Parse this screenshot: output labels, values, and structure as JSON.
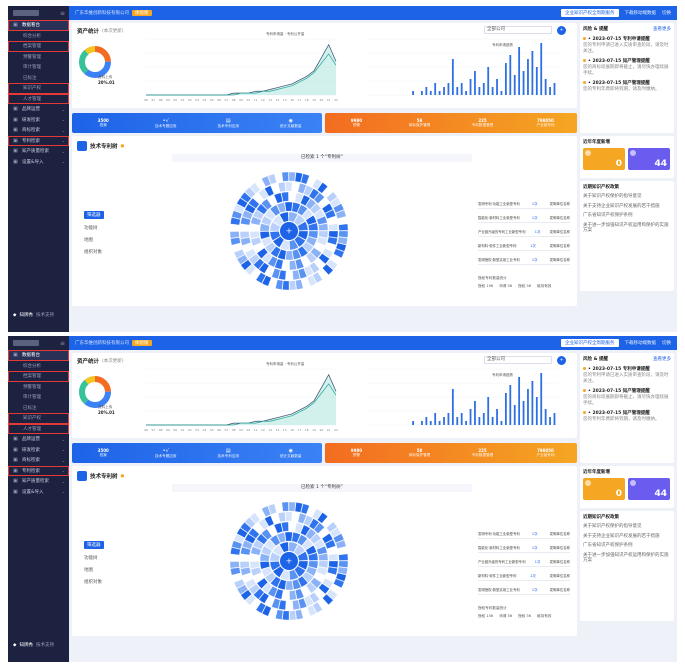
{
  "copies": [
    0,
    1
  ],
  "sidebar": {
    "items": [
      {
        "label": "数据看台",
        "icon": "dashboard-icon",
        "active": true,
        "boxed": true
      },
      {
        "label": "综合分析",
        "sub": true
      },
      {
        "label": "档案管理",
        "sub": true,
        "boxed": true
      },
      {
        "label": "预警管理",
        "sub": true
      },
      {
        "label": "审计管理",
        "sub": true
      },
      {
        "label": "已标注",
        "sub": true
      },
      {
        "label": "知识产权",
        "sub": true,
        "boxed": true
      },
      {
        "label": "人才管理",
        "sub": true,
        "boxed": true
      },
      {
        "label": "品牌运营",
        "icon": "brand-icon",
        "arrow": true
      },
      {
        "label": "研发检索",
        "icon": "research-icon",
        "arrow": true
      },
      {
        "label": "商标检索",
        "icon": "trademark-icon",
        "arrow": true
      },
      {
        "label": "专利检索",
        "icon": "patent-icon",
        "arrow": true,
        "boxed": true
      },
      {
        "label": "知产质量检索",
        "icon": "quality-icon",
        "arrow": true
      },
      {
        "label": "设置&导入",
        "icon": "settings-icon",
        "arrow": true
      }
    ],
    "footer": {
      "brand": "知牌秀",
      "support": "技术支持"
    }
  },
  "topbar": {
    "company": "广东华维创新科技有限公司",
    "tag": "体验版",
    "action": "企业知识产权全周期服务",
    "user": "下载移动端数据",
    "more": "切换"
  },
  "stats": {
    "title": "资产统计",
    "subtitle": "(本次更新)",
    "dropdown": "全部公司",
    "donut_label": "资料上传",
    "donut_pct": "20%.01"
  },
  "line_legend": {
    "a": "专利申请量",
    "b": "专利公开量"
  },
  "bar_legend": "专利申请趋势",
  "blue_bar": [
    {
      "v": "3500",
      "l": "档案"
    },
    {
      "v": "",
      "l": "技术专题应用",
      "ic": "•√"
    },
    {
      "v": "",
      "l": "技术专利应用",
      "ic": "▤"
    },
    {
      "v": "",
      "l": "统计文献数量",
      "ic": "◉"
    }
  ],
  "orange_bar": [
    {
      "v": "9980",
      "l": "预警"
    },
    {
      "v": "58",
      "l": "商标保护管理"
    },
    {
      "v": "225",
      "l": "专利数据管理"
    },
    {
      "v": "798050",
      "l": "产业链专利"
    }
  ],
  "tech": {
    "title": "技术专利树",
    "center": "已检索 1 个“专利树”",
    "controls": [
      "筛选器",
      "功能树",
      "地图",
      "组织对象"
    ]
  },
  "table": [
    {
      "a": "发明专利·功能工业新型专利",
      "b": "1次",
      "c": "发明单位名称"
    },
    {
      "a": "智能化·新材料工业新型专利",
      "b": "1次",
      "c": "发明单位名称"
    },
    {
      "a": "产业链升级的专利工业新型专利",
      "b": "1次",
      "c": "发明单位名称"
    },
    {
      "a": "新材料·软件工业新型专利",
      "b": "1次",
      "c": "发明单位名称"
    },
    {
      "a": "发明授权·新型实用工业专利",
      "b": "1次",
      "c": "发明单位名称"
    }
  ],
  "table_legend": {
    "title": "授权专利数量统计",
    "items": [
      "授权 156",
      "申请 56",
      "授权 56",
      "维持有效"
    ]
  },
  "right": {
    "news_title": "风险 & 提醒",
    "news_more": "查看更多",
    "news": [
      {
        "date": "• 2023-07-15 专利申请提醒",
        "text": "您的专利申请已进入实质审查阶段，请及时关注。"
      },
      {
        "date": "• 2023-07-15 知产管理提醒",
        "text": "您的商标续展期即将截止，请尽快办理续展手续。"
      },
      {
        "date": "• 2023-07-15 知产管理提醒",
        "text": "您的专利年费即将到期，请及时缴纳。"
      }
    ],
    "year_title": "近年年度新增",
    "tiles": [
      {
        "num": "0",
        "color": "#f5a623"
      },
      {
        "num": "44",
        "color": "#6b5cf0"
      }
    ],
    "policy_title": "近期知识产权政策",
    "policies": [
      "关于知识产权保护的指导意见",
      "关于支持企业知识产权发展的若干措施",
      "广东省知识产权保护条例",
      "关于进一步加强知识产权运用和保护的实施方案"
    ]
  },
  "chart_data": [
    {
      "type": "line",
      "series": [
        {
          "name": "专利申请量",
          "values": [
            0,
            0,
            0,
            0,
            0,
            0,
            0,
            0,
            0,
            0,
            0,
            0,
            1,
            1,
            1,
            2,
            2,
            3,
            4,
            5,
            6,
            8,
            10,
            13,
            20,
            27,
            18
          ]
        },
        {
          "name": "专利公开量",
          "values": [
            0,
            0,
            0,
            0,
            0,
            0,
            0,
            0,
            0,
            0,
            0,
            0,
            0,
            1,
            1,
            1,
            2,
            2,
            3,
            4,
            5,
            7,
            9,
            12,
            17,
            22,
            16
          ]
        }
      ],
      "x": [
        "96",
        "97",
        "98",
        "99",
        "00",
        "01",
        "02",
        "03",
        "04",
        "05",
        "06",
        "07",
        "08",
        "09",
        "10",
        "11",
        "12",
        "13",
        "14",
        "15",
        "16",
        "17",
        "18",
        "19",
        "20",
        "21",
        "22"
      ],
      "ylim": [
        0,
        30
      ]
    },
    {
      "type": "bar",
      "series": [
        {
          "name": "专利申请趋势",
          "values": [
            0,
            0,
            0,
            0,
            0,
            0,
            0,
            0,
            0,
            0,
            1,
            0,
            1,
            2,
            1,
            3,
            1,
            2,
            3,
            9,
            2,
            3,
            1,
            4,
            6,
            2,
            3,
            7,
            2,
            4,
            1,
            8,
            10,
            5,
            12,
            6,
            9,
            11,
            7,
            13,
            4,
            2,
            3
          ]
        }
      ],
      "ylim": [
        0,
        14
      ]
    }
  ]
}
